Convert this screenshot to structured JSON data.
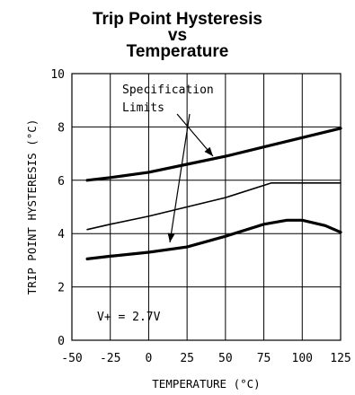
{
  "chart_data": {
    "type": "line",
    "title": [
      "Trip Point Hysteresis",
      "vs",
      "Temperature"
    ],
    "xlabel": "TEMPERATURE (°C)",
    "ylabel": "TRIP POINT HYSTERESIS (°C)",
    "xlim": [
      -50,
      125
    ],
    "ylim": [
      0,
      10
    ],
    "xticks": [
      -50,
      -25,
      0,
      25,
      50,
      75,
      100,
      125
    ],
    "yticks": [
      0,
      2,
      4,
      6,
      8,
      10
    ],
    "grid": true,
    "legend": "none",
    "annotations": [
      "Specification",
      "Limits",
      "V+ = 2.7V"
    ],
    "series": [
      {
        "style": "thick",
        "x": [
          -40,
          -25,
          0,
          25,
          50,
          75,
          100,
          125
        ],
        "y": [
          6.0,
          6.1,
          6.3,
          6.6,
          6.9,
          7.25,
          7.6,
          7.95
        ]
      },
      {
        "style": "thin",
        "x": [
          -40,
          -25,
          0,
          25,
          50,
          80,
          100,
          125
        ],
        "y": [
          4.15,
          4.35,
          4.65,
          5.0,
          5.35,
          5.9,
          5.9,
          5.9
        ]
      },
      {
        "style": "thick",
        "x": [
          -40,
          -25,
          0,
          25,
          50,
          75,
          90,
          100,
          115,
          125
        ],
        "y": [
          3.05,
          3.15,
          3.3,
          3.5,
          3.9,
          4.35,
          4.5,
          4.5,
          4.3,
          4.05
        ]
      }
    ]
  }
}
